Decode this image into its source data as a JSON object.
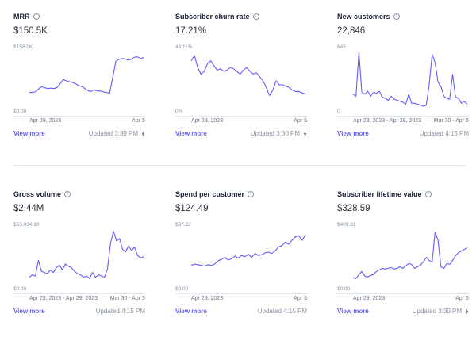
{
  "line_color": "#635bff",
  "view_more_label": "View more",
  "charts": [
    {
      "title": "MRR",
      "value": "$150.5K",
      "max_label": "$158.0K",
      "zero_label": "$0.00",
      "x_left": "Apr 29, 2023",
      "x_right": "Apr 5",
      "updated": "Updated 3:30 PM",
      "has_bolt": true,
      "ymax": 158.0,
      "values": [
        53,
        54,
        55,
        62,
        68,
        65,
        63,
        64,
        63,
        66,
        75,
        85,
        82,
        80,
        78,
        75,
        70,
        68,
        63,
        58,
        56,
        60,
        57,
        57,
        55,
        53,
        52,
        90,
        130,
        135,
        137,
        136,
        133,
        135,
        140,
        141,
        137,
        139
      ]
    },
    {
      "title": "Subscriber churn rate",
      "value": "17.21%",
      "max_label": "48.11%",
      "zero_label": "0%",
      "x_left": "Apr 29, 2023",
      "x_right": "Apr 5",
      "updated": "Updated 3:30 PM",
      "has_bolt": true,
      "ymax": 48.11,
      "values": [
        40,
        44,
        35,
        30,
        32,
        38,
        40,
        36,
        33,
        34,
        32,
        33,
        35,
        34,
        32,
        30,
        33,
        35,
        32,
        30,
        31,
        28,
        25,
        20,
        14,
        18,
        25,
        22,
        22,
        21,
        20,
        18,
        17,
        17,
        16,
        15
      ]
    },
    {
      "title": "New customers",
      "value": "22,846",
      "max_label": "645",
      "zero_label": "0",
      "x_left": "Apr 23, 2023 - Apr 29, 2023",
      "x_right": "Mar 30 - Apr 5",
      "updated": "Updated 4:15 PM",
      "has_bolt": false,
      "ymax": 645,
      "values": [
        200,
        180,
        620,
        220,
        200,
        230,
        180,
        220,
        210,
        230,
        170,
        160,
        140,
        180,
        150,
        140,
        130,
        120,
        100,
        200,
        110,
        110,
        100,
        90,
        80,
        90,
        300,
        600,
        520,
        320,
        280,
        180,
        160,
        150,
        400,
        170,
        160,
        110,
        130,
        100
      ]
    },
    {
      "title": "Gross volume",
      "value": "$2.44M",
      "max_label": "$53,034.10",
      "zero_label": "$0.00",
      "x_left": "Apr 23, 2023 - Apr 29, 2023",
      "x_right": "Mar 30 - Apr 5",
      "updated": "Updated 4:15 PM",
      "has_bolt": false,
      "ymax": 53034.1,
      "values": [
        12000,
        14000,
        13000,
        26000,
        17000,
        16000,
        15000,
        18000,
        16000,
        20000,
        22000,
        18000,
        23000,
        21000,
        20000,
        17000,
        15000,
        14000,
        12000,
        13000,
        11000,
        16000,
        12000,
        14000,
        13000,
        12000,
        19000,
        40000,
        50000,
        42000,
        44000,
        35000,
        33000,
        38000,
        34000,
        37000,
        30000,
        28000,
        29000
      ]
    },
    {
      "title": "Spend per customer",
      "value": "$124.49",
      "max_label": "$97.22",
      "zero_label": "$0.00",
      "x_left": "Apr 29, 2023",
      "x_right": "Apr 5",
      "updated": "Updated 4:15 PM",
      "has_bolt": false,
      "ymax": 97.22,
      "values": [
        40,
        42,
        41,
        40,
        39,
        41,
        40,
        42,
        47,
        49,
        52,
        48,
        50,
        54,
        51,
        55,
        53,
        57,
        52,
        58,
        55,
        56,
        59,
        60,
        58,
        62,
        68,
        70,
        75,
        72,
        78,
        83,
        85,
        78,
        86
      ]
    },
    {
      "title": "Subscriber lifetime value",
      "value": "$328.59",
      "max_label": "$409.91",
      "zero_label": "$0.00",
      "x_left": "Apr 29, 2023",
      "x_right": "Apr 5",
      "updated": "Updated 3:30 PM",
      "has_bolt": true,
      "ymax": 409.91,
      "values": [
        90,
        85,
        110,
        130,
        100,
        95,
        105,
        110,
        130,
        140,
        150,
        145,
        150,
        155,
        145,
        150,
        160,
        150,
        165,
        180,
        175,
        150,
        160,
        170,
        190,
        220,
        200,
        190,
        380,
        330,
        160,
        150,
        180,
        175,
        200,
        230,
        250,
        260,
        270,
        280
      ]
    }
  ]
}
